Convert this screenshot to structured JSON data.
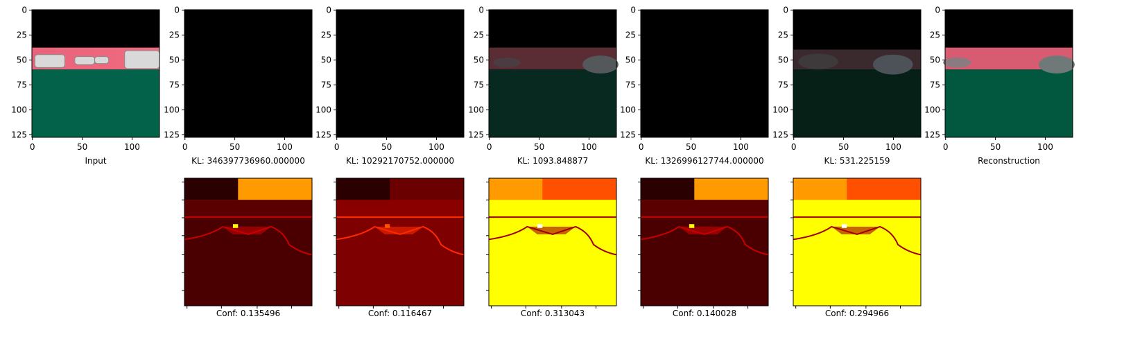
{
  "chart_data": {
    "type": "heatmap",
    "panels": [
      {
        "kind": "image",
        "caption": "Input",
        "content": "input-scene"
      },
      {
        "kind": "image",
        "caption": "KL: 346397736960.000000",
        "content": "black"
      },
      {
        "kind": "image",
        "caption": "KL: 10292170752.000000",
        "content": "black"
      },
      {
        "kind": "image",
        "caption": "KL: 1093.848877",
        "content": "dark-scene"
      },
      {
        "kind": "image",
        "caption": "KL: 1326996127744.000000",
        "content": "black"
      },
      {
        "kind": "image",
        "caption": "KL: 531.225159",
        "content": "dark-scene-2"
      },
      {
        "kind": "image",
        "caption": "Reconstruction",
        "content": "reconstruction"
      }
    ],
    "confidence_maps": [
      {
        "caption": "Conf: 0.135496",
        "palette": "dark"
      },
      {
        "caption": "Conf: 0.116467",
        "palette": "red"
      },
      {
        "caption": "Conf: 0.313043",
        "palette": "yellow"
      },
      {
        "caption": "Conf: 0.140028",
        "palette": "dark"
      },
      {
        "caption": "Conf: 0.294966",
        "palette": "yellow"
      }
    ],
    "xlim": [
      0,
      127
    ],
    "ylim": [
      127,
      0
    ],
    "xticks": [
      0,
      50,
      100
    ],
    "yticks": [
      0,
      25,
      50,
      75,
      100,
      125
    ],
    "colormap": "hot"
  }
}
